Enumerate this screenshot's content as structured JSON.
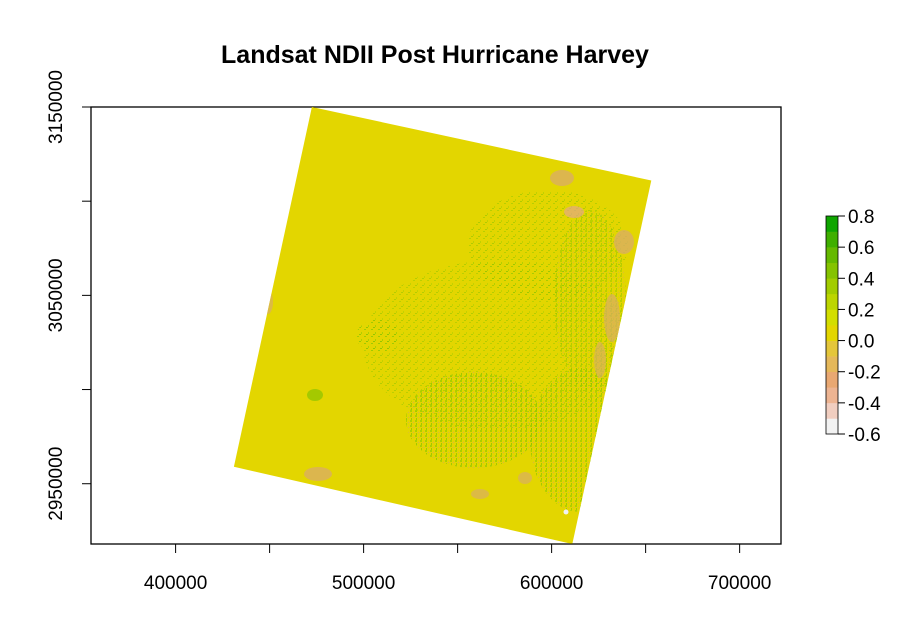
{
  "chart_data": {
    "type": "heatmap",
    "title": "Landsat NDII Post Hurricane Harvey",
    "xlabel": "",
    "ylabel": "",
    "xlim": [
      355000,
      722000
    ],
    "ylim": [
      2918000,
      3150000
    ],
    "x_ticks": [
      400000,
      500000,
      600000,
      700000
    ],
    "x_tick_labels": [
      "400000",
      "500000",
      "600000",
      "700000"
    ],
    "y_ticks": [
      2950000,
      3050000,
      3150000
    ],
    "y_tick_labels": [
      "2950000",
      "3050000",
      "3150000"
    ],
    "raster_footprint": [
      {
        "x": 472500,
        "y": 3150000
      },
      {
        "x": 653000,
        "y": 3111000
      },
      {
        "x": 611000,
        "y": 2918000
      },
      {
        "x": 431000,
        "y": 2959000
      }
    ],
    "dominant_value_range": [
      0.0,
      0.2
    ],
    "grid": false,
    "legend": {
      "placement": "right",
      "breaks": [
        -0.6,
        -0.5,
        -0.4,
        -0.3,
        -0.2,
        -0.1,
        0.0,
        0.1,
        0.2,
        0.3,
        0.4,
        0.5,
        0.6,
        0.7,
        0.8
      ],
      "colors": [
        "#F2F2F2",
        "#F1CEC0",
        "#EDB492",
        "#E9A872",
        "#E5B85A",
        "#E4C63A",
        "#E3D600",
        "#D3DE00",
        "#BCD500",
        "#A2CC00",
        "#85C300",
        "#65B900",
        "#3FAF00",
        "#0FA500"
      ],
      "tick_values": [
        0.8,
        0.6,
        0.4,
        0.2,
        0.0,
        -0.2,
        -0.4,
        -0.6
      ],
      "tick_labels": [
        "0.8",
        "0.6",
        "0.4",
        "0.2",
        "0.0",
        "-0.2",
        "-0.4",
        "-0.6"
      ]
    }
  }
}
